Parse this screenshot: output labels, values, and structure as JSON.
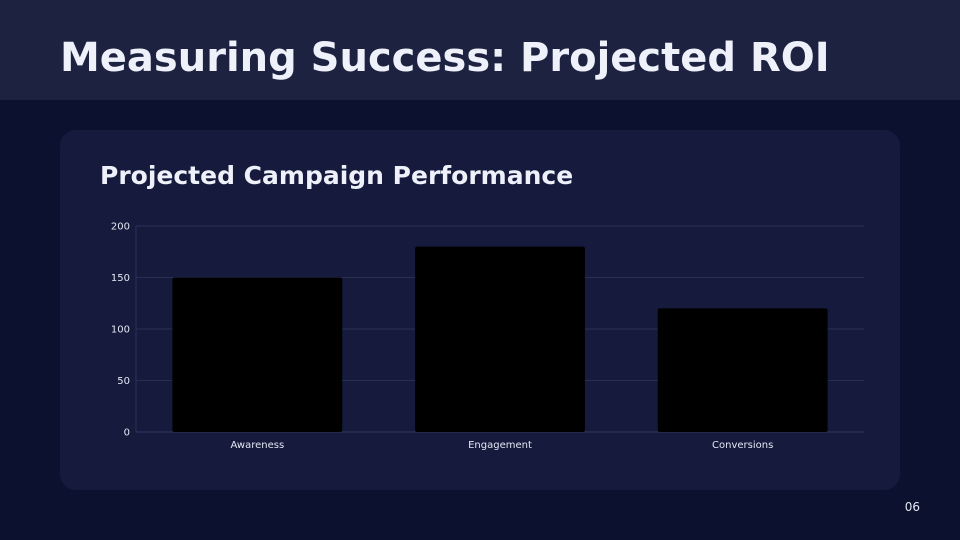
{
  "slide": {
    "title": "Measuring Success: Projected ROI",
    "card_title": "Projected Campaign Performance",
    "page_number": "06"
  },
  "colors": {
    "header_bg": "#1d2240",
    "page_bg": "#0d1130",
    "card_bg": "#161b3d",
    "grid": "#283052",
    "bar": "#000000",
    "text": "#eef0fa"
  },
  "chart_data": {
    "type": "bar",
    "title": "Projected Campaign Performance",
    "categories": [
      "Awareness",
      "Engagement",
      "Conversions"
    ],
    "values": [
      150,
      180,
      120
    ],
    "ylim": [
      0,
      200
    ],
    "yticks": [
      0,
      50,
      100,
      150,
      200
    ],
    "xlabel": "",
    "ylabel": "",
    "grid": true,
    "legend": "none"
  }
}
